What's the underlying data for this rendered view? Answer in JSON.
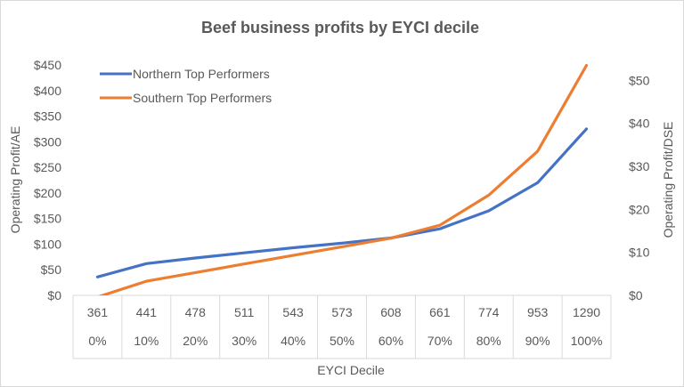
{
  "chart_data": {
    "type": "line",
    "title": "Beef business profits by EYCI decile",
    "xlabel": "EYCI Decile",
    "ylabel": "Operating Profit/AE",
    "y2label": "Operating Profit/DSE",
    "categories": [
      "361\n0%",
      "441\n10%",
      "478\n20%",
      "511\n30%",
      "543\n40%",
      "573\n50%",
      "608\n60%",
      "661\n70%",
      "774\n80%",
      "953\n90%",
      "1290\n100%"
    ],
    "category_rows": [
      [
        "361",
        "441",
        "478",
        "511",
        "543",
        "573",
        "608",
        "661",
        "774",
        "953",
        "1290"
      ],
      [
        "0%",
        "10%",
        "20%",
        "30%",
        "40%",
        "50%",
        "60%",
        "70%",
        "80%",
        "90%",
        "100%"
      ]
    ],
    "ylim": [
      0,
      450
    ],
    "y_ticks": [
      "$0",
      "$50",
      "$100",
      "$150",
      "$200",
      "$250",
      "$300",
      "$350",
      "$400",
      "$450"
    ],
    "y2lim": [
      0,
      53.6
    ],
    "y2_ticks": [
      "$0",
      "$10",
      "$20",
      "$30",
      "$40",
      "$50"
    ],
    "grid": false,
    "legend_position": "top-left",
    "series": [
      {
        "name": "Northern Top Performers",
        "axis": "left",
        "color": "#4472C4",
        "values": [
          36,
          62,
          73,
          83,
          93,
          102,
          112,
          130,
          165,
          220,
          325
        ]
      },
      {
        "name": "Southern Top Performers",
        "axis": "right",
        "color": "#ED7D31",
        "values": [
          -0.4,
          3.3,
          5.3,
          7.3,
          9.3,
          11.3,
          13.3,
          16.3,
          23.3,
          33.5,
          53.5
        ]
      }
    ]
  }
}
